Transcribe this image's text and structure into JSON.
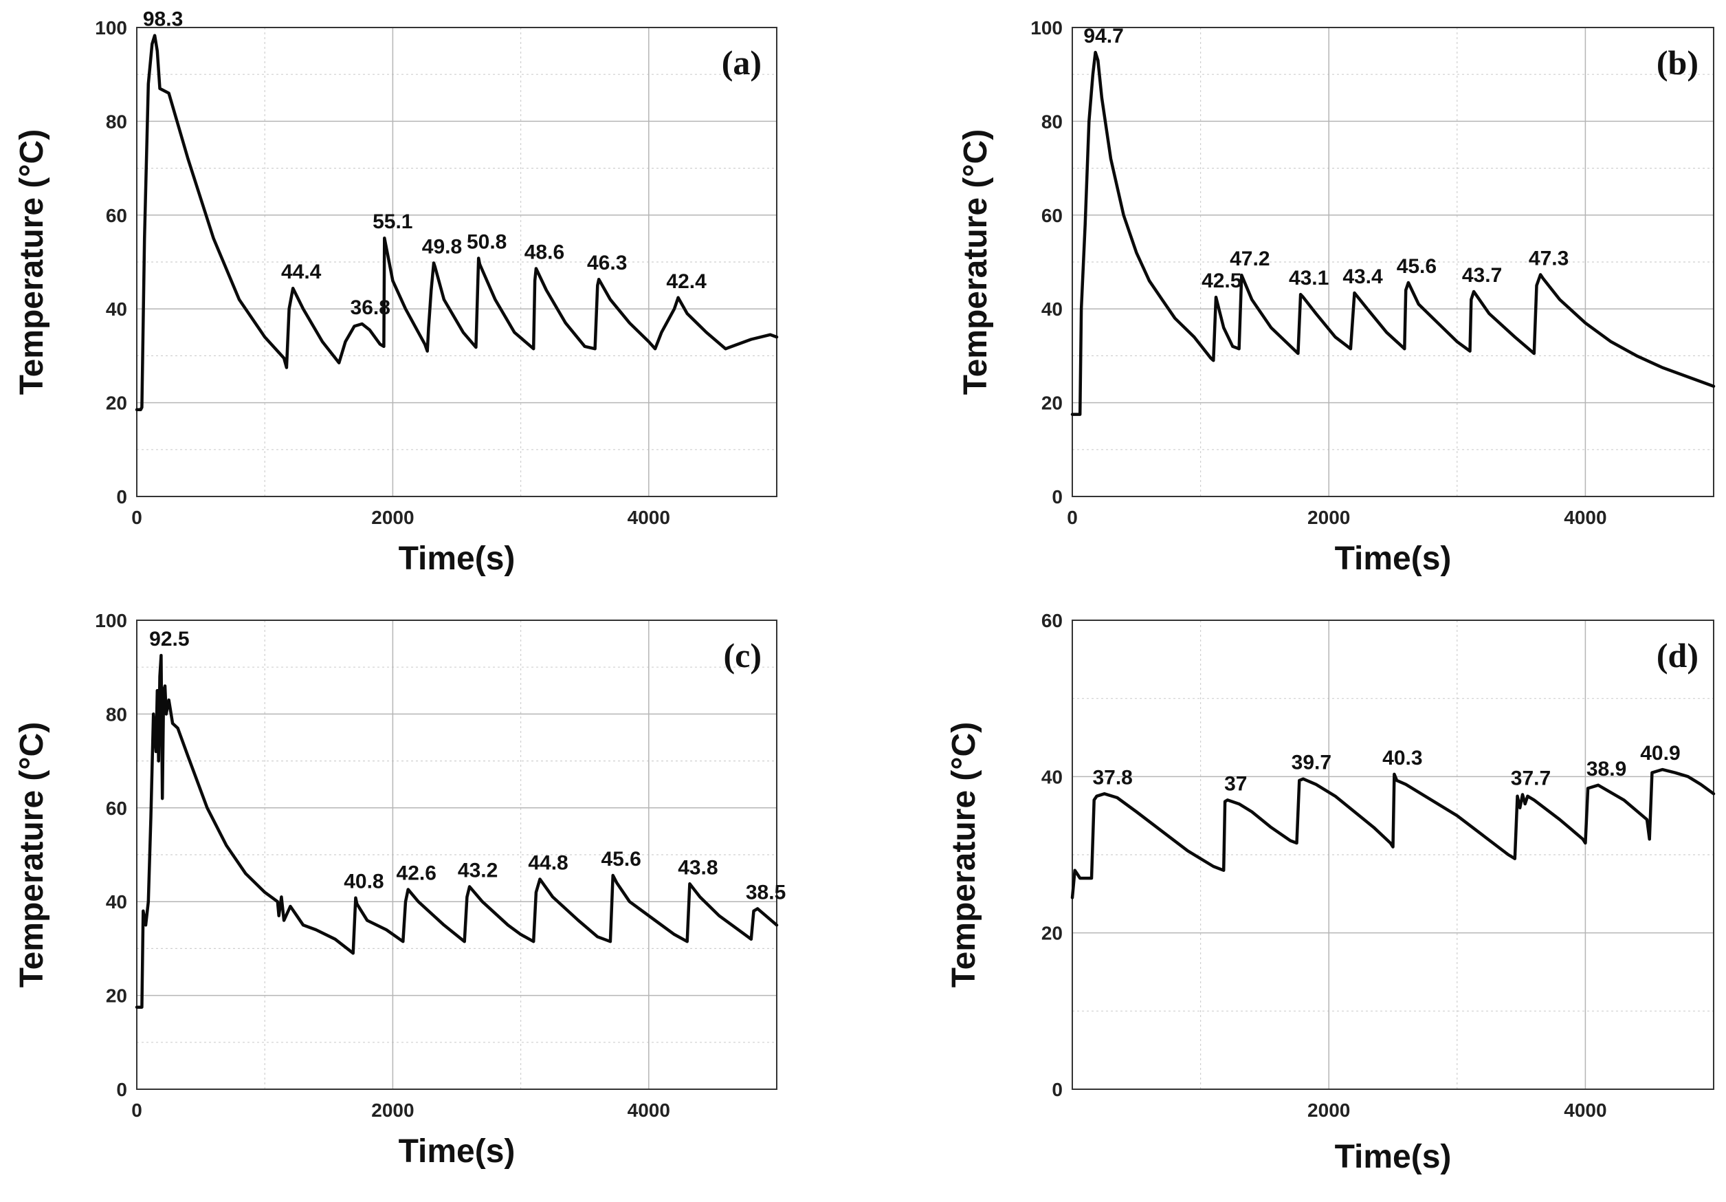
{
  "chart_data": [
    {
      "type": "line",
      "panel_label": "(a)",
      "xlabel": "Time(s)",
      "ylabel": "Temperature (°C)",
      "xlim": [
        0,
        5000
      ],
      "ylim": [
        0,
        100
      ],
      "xticks": [
        0,
        2000,
        4000
      ],
      "yticks": [
        0,
        20,
        40,
        60,
        80,
        100
      ],
      "x": [
        0,
        30,
        40,
        60,
        90,
        120,
        140,
        160,
        180,
        250,
        400,
        600,
        800,
        1000,
        1150,
        1170,
        1190,
        1220,
        1300,
        1450,
        1580,
        1630,
        1700,
        1760,
        1820,
        1900,
        1930,
        1935,
        2000,
        2100,
        2200,
        2250,
        2270,
        2280,
        2300,
        2320,
        2330,
        2400,
        2550,
        2650,
        2670,
        2680,
        2800,
        2950,
        3100,
        3110,
        3120,
        3200,
        3350,
        3500,
        3580,
        3600,
        3610,
        3700,
        3850,
        4000,
        4050,
        4100,
        4200,
        4230,
        4300,
        4450,
        4600,
        4650,
        4800,
        4950,
        5000
      ],
      "series": [
        {
          "name": "Temperature",
          "values": [
            18.5,
            18.5,
            19,
            55,
            88,
            96.5,
            98.3,
            95,
            87,
            86,
            72,
            55,
            42,
            34,
            29.5,
            27.5,
            40,
            44.4,
            40,
            33,
            28.5,
            33,
            36.3,
            36.8,
            35.5,
            32.5,
            32,
            55.1,
            46,
            40,
            35,
            32.5,
            31,
            36,
            44,
            49.8,
            49,
            42,
            35,
            31.8,
            50.8,
            49.5,
            42,
            35,
            31.5,
            46,
            48.6,
            44,
            37,
            32,
            31.5,
            45,
            46.3,
            42,
            37,
            33,
            31.5,
            35,
            40,
            42.4,
            39,
            35,
            31.5,
            32,
            33.5,
            34.5,
            34
          ]
        }
      ],
      "annotations": [
        {
          "text": "98.3",
          "x": 140,
          "y": 98.3
        },
        {
          "text": "44.4",
          "x": 1220,
          "y": 44.4
        },
        {
          "text": "36.8",
          "x": 1760,
          "y": 36.8
        },
        {
          "text": "55.1",
          "x": 1935,
          "y": 55.1
        },
        {
          "text": "49.8",
          "x": 2320,
          "y": 49.8
        },
        {
          "text": "50.8",
          "x": 2670,
          "y": 50.8
        },
        {
          "text": "48.6",
          "x": 3120,
          "y": 48.6
        },
        {
          "text": "46.3",
          "x": 3610,
          "y": 46.3
        },
        {
          "text": "42.4",
          "x": 4230,
          "y": 42.4
        }
      ]
    },
    {
      "type": "line",
      "panel_label": "(b)",
      "xlabel": "Time(s)",
      "ylabel": "Temperature (°C)",
      "xlim": [
        0,
        5000
      ],
      "ylim": [
        0,
        100
      ],
      "xticks": [
        0,
        2000,
        4000
      ],
      "yticks": [
        0,
        20,
        40,
        60,
        80,
        100
      ],
      "x": [
        0,
        60,
        70,
        100,
        130,
        160,
        180,
        200,
        230,
        300,
        400,
        500,
        600,
        700,
        800,
        950,
        1080,
        1100,
        1120,
        1180,
        1250,
        1300,
        1320,
        1400,
        1550,
        1760,
        1780,
        1800,
        1900,
        2050,
        2170,
        2200,
        2300,
        2450,
        2590,
        2600,
        2620,
        2700,
        2850,
        3000,
        3100,
        3110,
        3130,
        3250,
        3450,
        3600,
        3620,
        3650,
        3670,
        3800,
        4000,
        4200,
        4400,
        4600,
        4800,
        5000
      ],
      "series": [
        {
          "name": "Temperature",
          "values": [
            17.5,
            17.5,
            40,
            58,
            80,
            90,
            94.7,
            93,
            85,
            72,
            60,
            52,
            46,
            42,
            38,
            34,
            29.5,
            29,
            42.5,
            36,
            32,
            31.5,
            47.2,
            42,
            36,
            30.5,
            43.1,
            42.5,
            39,
            34,
            31.5,
            43.4,
            40,
            35,
            31.5,
            44,
            45.6,
            41,
            37,
            33,
            31,
            42,
            43.7,
            39,
            34,
            30.5,
            45,
            47.3,
            46.5,
            42,
            37,
            33,
            30,
            27.5,
            25.5,
            23.5
          ]
        }
      ],
      "annotations": [
        {
          "text": "94.7",
          "x": 180,
          "y": 94.7
        },
        {
          "text": "42.5",
          "x": 1100,
          "y": 42.5
        },
        {
          "text": "47.2",
          "x": 1320,
          "y": 47.2
        },
        {
          "text": "43.1",
          "x": 1780,
          "y": 43.1
        },
        {
          "text": "43.4",
          "x": 2200,
          "y": 43.4
        },
        {
          "text": "45.6",
          "x": 2620,
          "y": 45.6
        },
        {
          "text": "43.7",
          "x": 3130,
          "y": 43.7
        },
        {
          "text": "47.3",
          "x": 3650,
          "y": 47.3
        }
      ]
    },
    {
      "type": "line",
      "panel_label": "(c)",
      "xlabel": "Time(s)",
      "ylabel": "Temperature (°C)",
      "xlim": [
        0,
        5000
      ],
      "ylim": [
        0,
        100
      ],
      "xticks": [
        0,
        2000,
        4000
      ],
      "yticks": [
        0,
        20,
        40,
        60,
        80,
        100
      ],
      "x": [
        0,
        40,
        50,
        70,
        90,
        110,
        130,
        150,
        160,
        170,
        180,
        190,
        200,
        210,
        220,
        230,
        250,
        280,
        320,
        400,
        550,
        700,
        850,
        1000,
        1100,
        1110,
        1130,
        1150,
        1200,
        1250,
        1300,
        1400,
        1550,
        1690,
        1710,
        1720,
        1800,
        1950,
        2080,
        2100,
        2120,
        2200,
        2400,
        2560,
        2580,
        2600,
        2700,
        2900,
        3000,
        3100,
        3120,
        3150,
        3250,
        3450,
        3600,
        3700,
        3720,
        3750,
        3850,
        4050,
        4200,
        4300,
        4320,
        4400,
        4550,
        4700,
        4800,
        4820,
        4850,
        5000
      ],
      "series": [
        {
          "name": "Temperature",
          "values": [
            17.5,
            17.5,
            38,
            35,
            40,
            58,
            80,
            72,
            85,
            70,
            88,
            92.5,
            62,
            85,
            86,
            80,
            83,
            78,
            77,
            71,
            60,
            52,
            46,
            42,
            40,
            37,
            41,
            36,
            39,
            37,
            35,
            34,
            32,
            29,
            40.8,
            39.5,
            36,
            34,
            31.5,
            40,
            42.6,
            40,
            35,
            31.5,
            41,
            43.2,
            40,
            35,
            33,
            31.5,
            42,
            44.8,
            41,
            36,
            32.5,
            31.5,
            45.6,
            44,
            40,
            36,
            33,
            31.5,
            43.8,
            41,
            37,
            34,
            32,
            38,
            38.5,
            35
          ]
        }
      ],
      "annotations": [
        {
          "text": "92.5",
          "x": 190,
          "y": 92.5
        },
        {
          "text": "40.8",
          "x": 1710,
          "y": 40.8
        },
        {
          "text": "42.6",
          "x": 2120,
          "y": 42.6
        },
        {
          "text": "43.2",
          "x": 2600,
          "y": 43.2
        },
        {
          "text": "44.8",
          "x": 3150,
          "y": 44.8
        },
        {
          "text": "45.6",
          "x": 3720,
          "y": 45.6
        },
        {
          "text": "43.8",
          "x": 4320,
          "y": 43.8
        },
        {
          "text": "38.5",
          "x": 4850,
          "y": 38.5
        }
      ]
    },
    {
      "type": "line",
      "panel_label": "(d)",
      "xlabel": "Time(s)",
      "ylabel": "Temperature (°C)",
      "xlim": [
        0,
        5000
      ],
      "ylim": [
        0,
        60
      ],
      "xticks": [
        2000,
        4000
      ],
      "yticks": [
        0,
        20,
        40,
        60
      ],
      "x": [
        0,
        20,
        40,
        60,
        150,
        170,
        190,
        250,
        350,
        500,
        700,
        900,
        1100,
        1180,
        1190,
        1210,
        1300,
        1400,
        1550,
        1700,
        1750,
        1770,
        1800,
        1900,
        2050,
        2200,
        2350,
        2480,
        2500,
        2510,
        2530,
        2600,
        2800,
        3000,
        3200,
        3400,
        3450,
        3470,
        3490,
        3510,
        3530,
        3550,
        3600,
        3800,
        3980,
        4000,
        4020,
        4100,
        4300,
        4480,
        4500,
        4520,
        4600,
        4700,
        4800,
        4900,
        5000
      ],
      "series": [
        {
          "name": "Temperature",
          "values": [
            24.5,
            28,
            27.5,
            27,
            27,
            37,
            37.5,
            37.8,
            37.3,
            35.5,
            33,
            30.5,
            28.5,
            28,
            36.8,
            37,
            36.5,
            35.5,
            33.5,
            31.8,
            31.5,
            39.5,
            39.7,
            39,
            37.5,
            35.5,
            33.5,
            31.5,
            31,
            40.3,
            39.5,
            39,
            37,
            35,
            32.5,
            30,
            29.5,
            37.5,
            36,
            37.7,
            36.5,
            37.5,
            37,
            34.5,
            32,
            31.5,
            38.5,
            38.9,
            37,
            34.5,
            32,
            40.5,
            40.9,
            40.5,
            40,
            39,
            37.8
          ]
        }
      ],
      "annotations": [
        {
          "text": "37.8",
          "x": 250,
          "y": 37.8
        },
        {
          "text": "37",
          "x": 1210,
          "y": 37
        },
        {
          "text": "39.7",
          "x": 1800,
          "y": 39.7
        },
        {
          "text": "40.3",
          "x": 2510,
          "y": 40.3
        },
        {
          "text": "37.7",
          "x": 3510,
          "y": 37.7
        },
        {
          "text": "38.9",
          "x": 4100,
          "y": 38.9
        },
        {
          "text": "40.9",
          "x": 4520,
          "y": 40.9
        }
      ]
    }
  ]
}
